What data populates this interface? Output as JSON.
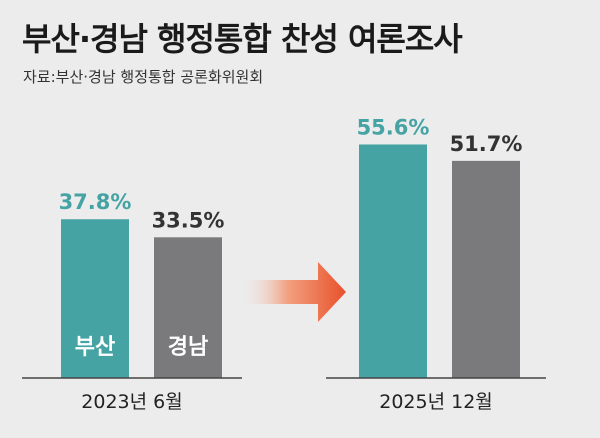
{
  "title": "부산·경남 행정통합 찬성 여론조사",
  "source": "자료:부산·경남 행정통합 공론화위원회",
  "chart_data": {
    "type": "bar",
    "title": "부산·경남 행정통합 찬성 여론조사",
    "groups": [
      "2023년 6월",
      "2025년 12월"
    ],
    "series": [
      {
        "name": "부산",
        "values": [
          37.8,
          55.6
        ],
        "color": "#45a3a4",
        "label_color": "#45a3a4"
      },
      {
        "name": "경남",
        "values": [
          33.5,
          51.7
        ],
        "color": "#7a7a7c",
        "label_color": "#333333"
      }
    ],
    "value_labels": [
      [
        "37.8%",
        "33.5%"
      ],
      [
        "55.6%",
        "51.7%"
      ]
    ],
    "unit": "%",
    "ylim": [
      0,
      60
    ],
    "grid": false,
    "legend": "inside-bars",
    "arrow_color": "#e8512a"
  }
}
